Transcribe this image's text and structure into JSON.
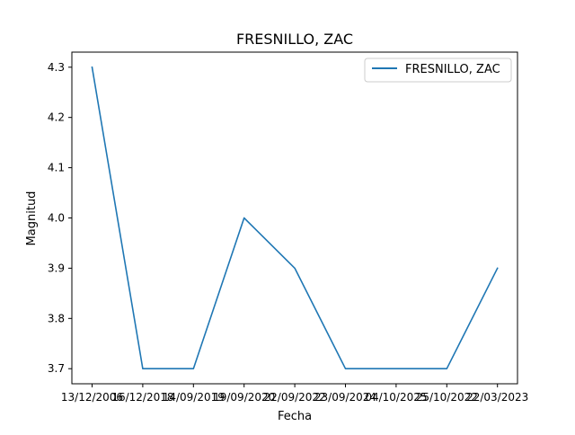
{
  "chart_data": {
    "type": "line",
    "title": "FRESNILLO, ZAC",
    "xlabel": "Fecha",
    "ylabel": "Magnitud",
    "categories": [
      "13/12/2006",
      "16/12/2018",
      "14/09/2019",
      "19/09/2020",
      "22/09/2022",
      "23/09/2024",
      "04/10/2025",
      "25/10/2022",
      "22/03/2023"
    ],
    "series": [
      {
        "name": "FRESNILLO, ZAC",
        "values": [
          4.3,
          3.7,
          3.7,
          4.0,
          3.9,
          3.7,
          3.7,
          3.7,
          3.9
        ],
        "color": "#1f77b4"
      }
    ],
    "yticks": [
      "3.7",
      "3.8",
      "3.9",
      "4.0",
      "4.1",
      "4.2",
      "4.3"
    ],
    "ylim": [
      3.67,
      4.33
    ],
    "grid": false,
    "legend": "top-right"
  }
}
